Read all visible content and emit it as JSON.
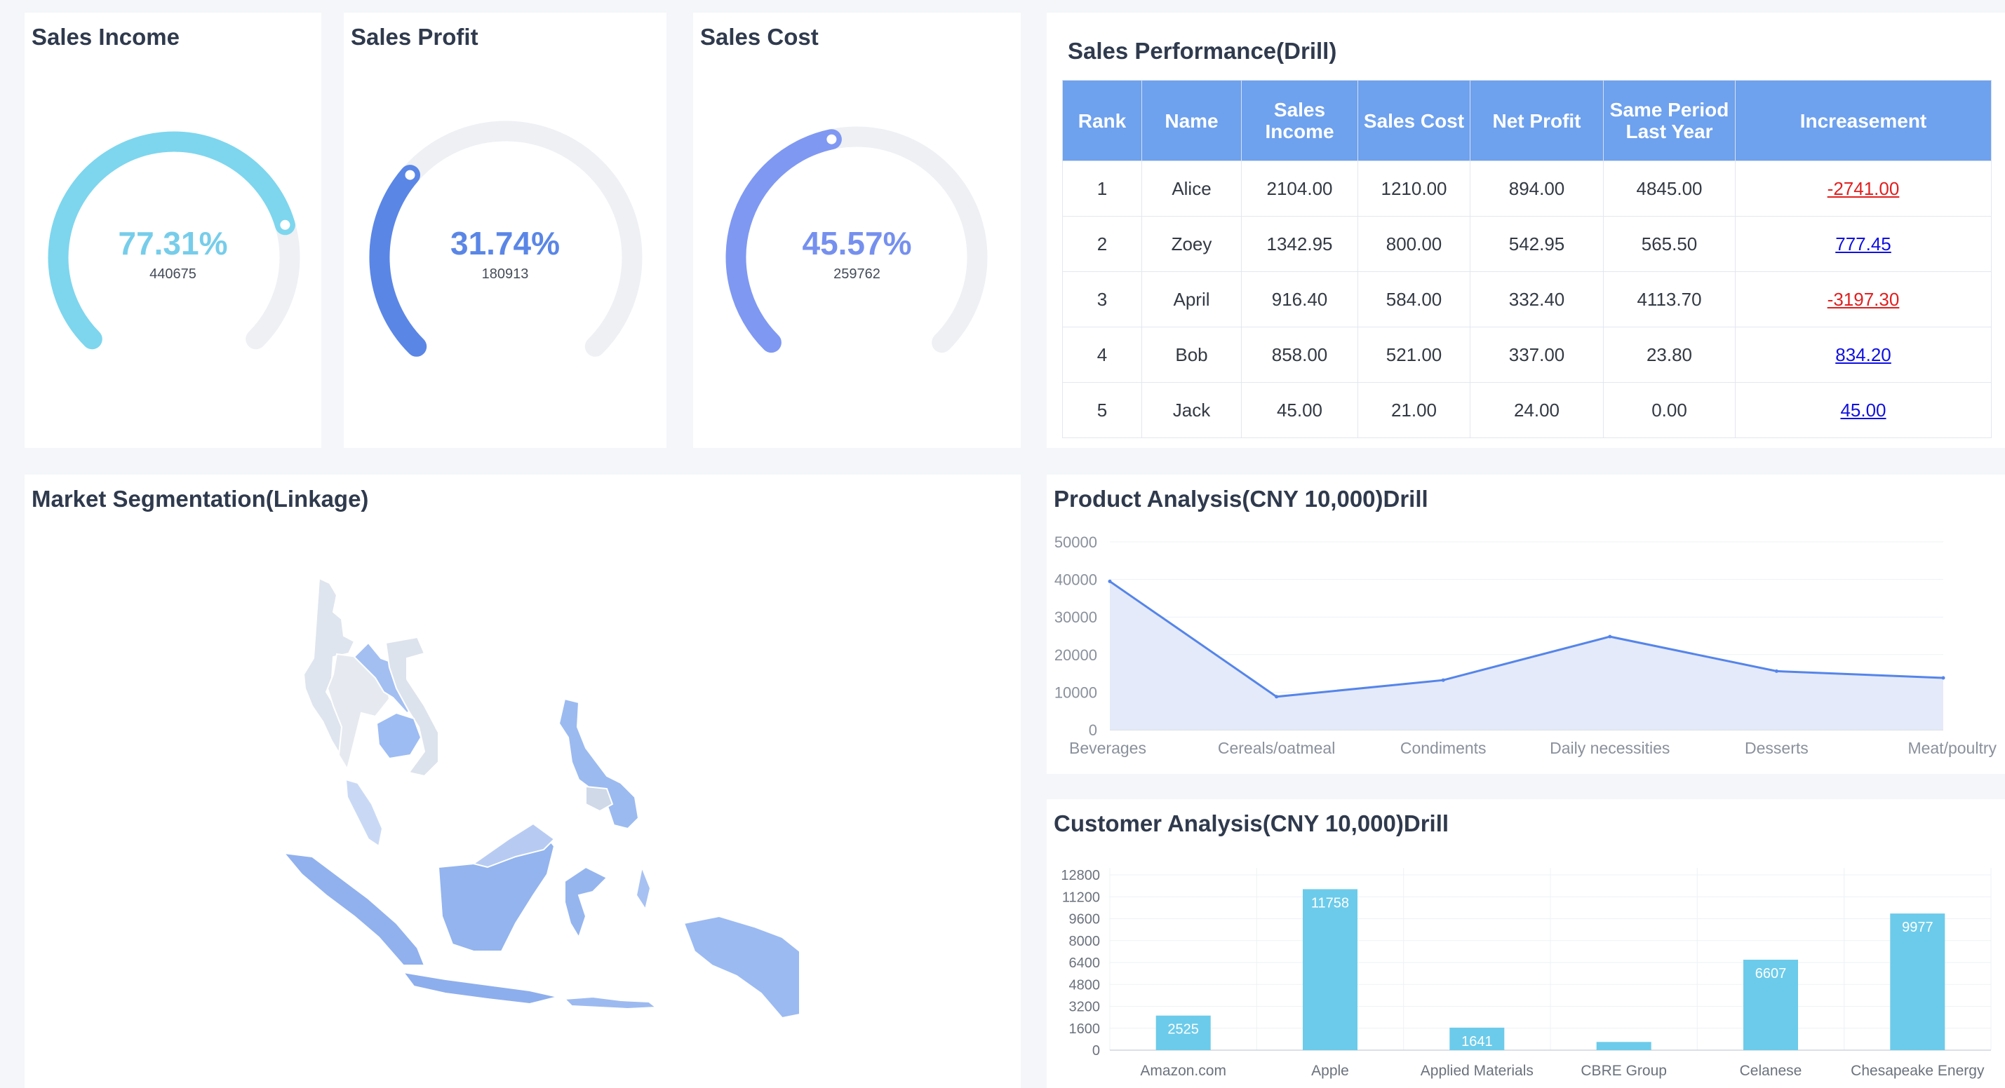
{
  "gauges": [
    {
      "title": "Sales Income",
      "percent_label": "77.31%",
      "value_label": "440675",
      "fraction": 0.7731,
      "color": "#7dd6ee",
      "text_color": "#76cdea"
    },
    {
      "title": "Sales Profit",
      "percent_label": "31.74%",
      "value_label": "180913",
      "fraction": 0.3174,
      "color": "#5a86e6",
      "text_color": "#5a86e6"
    },
    {
      "title": "Sales Cost",
      "percent_label": "45.57%",
      "value_label": "259762",
      "fraction": 0.4557,
      "color": "#7f98f2",
      "text_color": "#7590ee"
    }
  ],
  "performance": {
    "title": "Sales Performance(Drill)",
    "headers": [
      "Rank",
      "Name",
      "Sales Income",
      "Sales Cost",
      "Net Profit",
      "Same Period Last Year",
      "Increasement"
    ],
    "rows": [
      [
        "1",
        "Alice",
        "2104.00",
        "1210.00",
        "894.00",
        "4845.00",
        "-2741.00"
      ],
      [
        "2",
        "Zoey",
        "1342.95",
        "800.00",
        "542.95",
        "565.50",
        "777.45"
      ],
      [
        "3",
        "April",
        "916.40",
        "584.00",
        "332.40",
        "4113.70",
        "-3197.30"
      ],
      [
        "4",
        "Bob",
        "858.00",
        "521.00",
        "337.00",
        "23.80",
        "834.20"
      ],
      [
        "5",
        "Jack",
        "45.00",
        "21.00",
        "24.00",
        "0.00",
        "45.00"
      ]
    ],
    "negative_color": "#e02020",
    "positive_color": "#1010e0"
  },
  "market": {
    "title": "Market Segmentation(Linkage)"
  },
  "product_chart": {
    "title": "Product Analysis(CNY 10,000)Drill",
    "chart_data": {
      "type": "area",
      "categories": [
        "Beverages",
        "Cereals/oatmeal",
        "Condiments",
        "Daily necessities",
        "Desserts",
        "Meat/poultry"
      ],
      "values": [
        39500,
        8800,
        13200,
        24800,
        15600,
        13800
      ],
      "yticks": [
        0,
        10000,
        20000,
        30000,
        40000,
        50000
      ],
      "ylim": [
        0,
        50000
      ],
      "line_color": "#5585ea",
      "fill_color": "#e5eafa"
    }
  },
  "customer_chart": {
    "title": "Customer Analysis(CNY 10,000)Drill",
    "chart_data": {
      "type": "bar",
      "categories": [
        "Amazon.com",
        "Apple",
        "Applied Materials",
        "CBRE Group",
        "Celanese",
        "Chesapeake Energy"
      ],
      "values": [
        2525,
        11758,
        1641,
        600,
        6607,
        9977
      ],
      "labels": [
        "2525",
        "11758",
        "1641",
        "",
        "6607",
        "9977"
      ],
      "yticks": [
        0,
        1600,
        3200,
        4800,
        6400,
        8000,
        9600,
        11200,
        12800
      ],
      "ylim": [
        0,
        12800
      ],
      "bar_color": "#6ccbea"
    }
  }
}
